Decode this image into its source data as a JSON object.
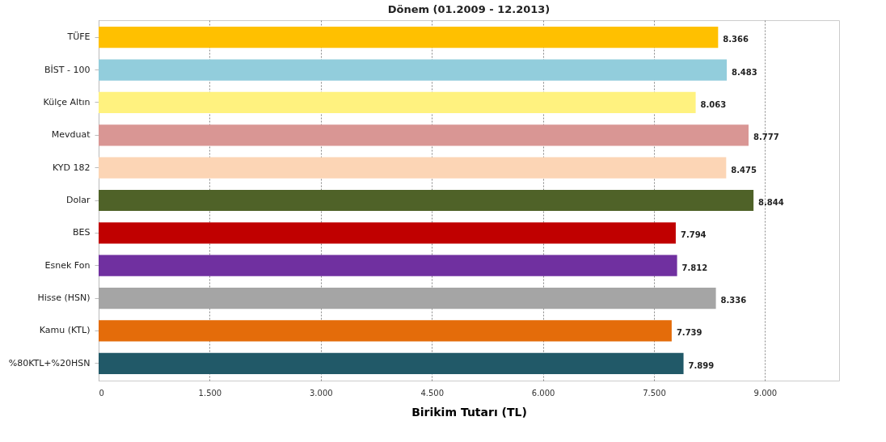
{
  "chart_data": {
    "type": "bar",
    "orientation": "horizontal",
    "title": "Dönem (01.2009 - 12.2013)",
    "xlabel": "Birikim Tutarı (TL)",
    "categories": [
      "TÜFE",
      "BİST - 100",
      "Külçe Altın",
      "Mevduat",
      "KYD 182",
      "Dolar",
      "BES",
      "Esnek Fon",
      "Hisse (HSN)",
      "Kamu (KTL)",
      "%80KTL+%20HSN"
    ],
    "values": [
      8366,
      8483,
      8063,
      8777,
      8475,
      8844,
      7794,
      7812,
      8336,
      7739,
      7899
    ],
    "value_labels": [
      "8.366",
      "8.483",
      "8.063",
      "8.777",
      "8.475",
      "8.844",
      "7.794",
      "7.812",
      "8.336",
      "7.739",
      "7.899"
    ],
    "colors": [
      "#ffc000",
      "#92cddc",
      "#fff27f",
      "#d99694",
      "#fcd5b5",
      "#4f6228",
      "#c00000",
      "#7030a0",
      "#a5a5a5",
      "#e46c0a",
      "#215968"
    ],
    "xlim": [
      0,
      10000
    ],
    "xticks": [
      0,
      {
        "value": 1500,
        "label": "1.500"
      },
      {
        "value": 3000,
        "label": "3.000"
      },
      {
        "value": 4500,
        "label": "4.500"
      },
      {
        "value": 6000,
        "label": "6.000"
      },
      {
        "value": 7500,
        "label": "7.500"
      },
      {
        "value": 9000,
        "label": "9.000"
      }
    ],
    "grid": "x",
    "legend": false
  }
}
